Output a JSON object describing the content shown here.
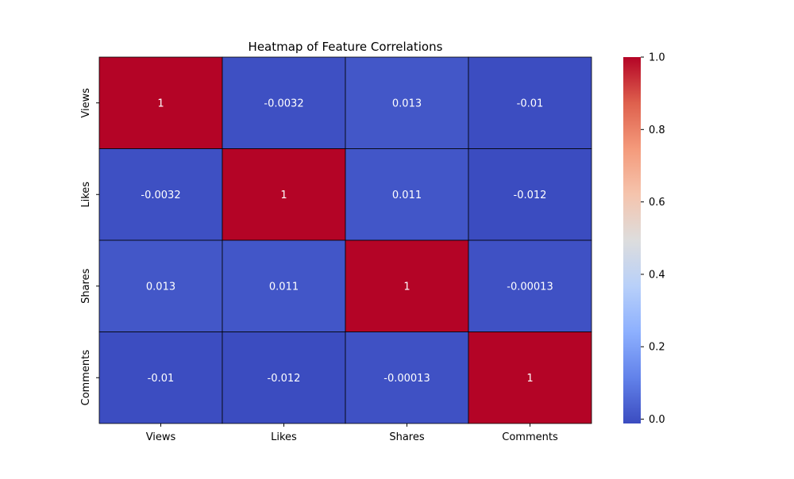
{
  "chart_data": {
    "type": "heatmap",
    "title": "Heatmap of Feature Correlations",
    "x_categories": [
      "Views",
      "Likes",
      "Shares",
      "Comments"
    ],
    "y_categories": [
      "Views",
      "Likes",
      "Shares",
      "Comments"
    ],
    "values": [
      [
        1,
        -0.0032,
        0.013,
        -0.01
      ],
      [
        -0.0032,
        1,
        0.011,
        -0.012
      ],
      [
        0.013,
        0.011,
        1,
        -0.00013
      ],
      [
        -0.01,
        -0.012,
        -0.00013,
        1
      ]
    ],
    "value_labels": [
      [
        "1",
        "-0.0032",
        "0.013",
        "-0.01"
      ],
      [
        "-0.0032",
        "1",
        "0.011",
        "-0.012"
      ],
      [
        "0.013",
        "0.011",
        "1",
        "-0.00013"
      ],
      [
        "-0.01",
        "-0.012",
        "-0.00013",
        "1"
      ]
    ],
    "colormap": "coolwarm",
    "colorbar": {
      "range": [
        -0.012,
        1.0
      ],
      "ticks": [
        0.0,
        0.2,
        0.4,
        0.6,
        0.8,
        1.0
      ],
      "tick_labels": [
        "0.0",
        "0.2",
        "0.4",
        "0.6",
        "0.8",
        "1.0"
      ]
    },
    "cell_border_color": "#000000"
  }
}
